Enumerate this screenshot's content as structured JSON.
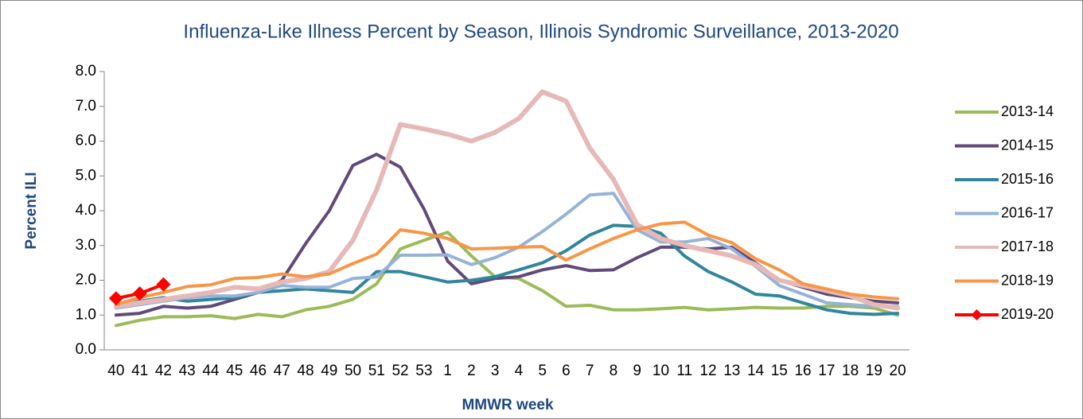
{
  "chart_data": {
    "type": "line",
    "title": "Influenza-Like Illness Percent by Season, Illinois Syndromic Surveillance, 2013-2020",
    "x_label": "MMWR week",
    "y_label": "Percent ILI",
    "categories": [
      "40",
      "41",
      "42",
      "43",
      "44",
      "45",
      "46",
      "47",
      "48",
      "49",
      "50",
      "51",
      "52",
      "53",
      "1",
      "2",
      "3",
      "4",
      "5",
      "6",
      "7",
      "8",
      "9",
      "10",
      "11",
      "12",
      "13",
      "14",
      "15",
      "16",
      "17",
      "18",
      "19",
      "20"
    ],
    "ylim": [
      0,
      8
    ],
    "yticks": [
      {
        "value": 0,
        "label": "0.0"
      },
      {
        "value": 1,
        "label": "1.0"
      },
      {
        "value": 2,
        "label": "2.0"
      },
      {
        "value": 3,
        "label": "3.0"
      },
      {
        "value": 4,
        "label": "4.0"
      },
      {
        "value": 5,
        "label": "5.0"
      },
      {
        "value": 6,
        "label": "6.0"
      },
      {
        "value": 7,
        "label": "7.0"
      },
      {
        "value": 8,
        "label": "8.0"
      }
    ],
    "grid": false,
    "legend": "right",
    "series": [
      {
        "name": "2013-14",
        "color": "#9bbb59",
        "values": [
          0.7,
          0.85,
          0.95,
          0.95,
          0.98,
          0.9,
          1.02,
          0.95,
          1.15,
          1.25,
          1.45,
          1.9,
          2.9,
          3.15,
          3.38,
          2.7,
          2.1,
          2.05,
          1.7,
          1.25,
          1.28,
          1.15,
          1.15,
          1.18,
          1.22,
          1.15,
          1.18,
          1.22,
          1.2,
          1.2,
          1.25,
          1.25,
          1.2,
          1.0
        ]
      },
      {
        "name": "2014-15",
        "color": "#604a7b",
        "values": [
          1.0,
          1.05,
          1.25,
          1.2,
          1.25,
          1.45,
          1.65,
          2.0,
          3.05,
          4.0,
          5.3,
          5.62,
          5.25,
          4.05,
          2.55,
          1.9,
          2.05,
          2.1,
          2.3,
          2.42,
          2.28,
          2.3,
          2.65,
          2.95,
          2.95,
          2.9,
          2.95,
          2.5,
          2.0,
          1.8,
          1.6,
          1.5,
          1.4,
          1.35
        ]
      },
      {
        "name": "2015-16",
        "color": "#31859c",
        "values": [
          1.3,
          1.4,
          1.5,
          1.4,
          1.45,
          1.5,
          1.65,
          1.7,
          1.75,
          1.7,
          1.65,
          2.25,
          2.25,
          2.1,
          1.95,
          2.0,
          2.1,
          2.3,
          2.5,
          2.85,
          3.3,
          3.58,
          3.55,
          3.35,
          2.7,
          2.25,
          1.95,
          1.6,
          1.55,
          1.35,
          1.15,
          1.05,
          1.02,
          1.05
        ]
      },
      {
        "name": "2016-17",
        "color": "#95b3d7",
        "values": [
          1.2,
          1.3,
          1.4,
          1.5,
          1.55,
          1.55,
          1.65,
          1.85,
          1.8,
          1.8,
          2.05,
          2.1,
          2.72,
          2.72,
          2.73,
          2.45,
          2.65,
          2.95,
          3.4,
          3.9,
          4.45,
          4.5,
          3.45,
          3.1,
          3.1,
          3.2,
          2.9,
          2.4,
          1.85,
          1.6,
          1.35,
          1.3,
          1.25,
          1.25
        ]
      },
      {
        "name": "2017-18",
        "color": "#e6b9b8",
        "values": [
          1.25,
          1.35,
          1.45,
          1.55,
          1.65,
          1.8,
          1.75,
          1.95,
          2.05,
          2.25,
          3.15,
          4.6,
          6.48,
          6.35,
          6.2,
          6.0,
          6.25,
          6.65,
          7.42,
          7.15,
          5.8,
          4.9,
          3.6,
          3.2,
          3.0,
          2.85,
          2.7,
          2.45,
          2.0,
          1.85,
          1.7,
          1.55,
          1.3,
          1.2
        ]
      },
      {
        "name": "2018-19",
        "color": "#f79646",
        "values": [
          1.3,
          1.5,
          1.65,
          1.82,
          1.87,
          2.05,
          2.08,
          2.18,
          2.1,
          2.18,
          2.48,
          2.75,
          3.45,
          3.35,
          3.2,
          2.9,
          2.92,
          2.95,
          2.97,
          2.58,
          2.9,
          3.2,
          3.45,
          3.62,
          3.67,
          3.3,
          3.08,
          2.62,
          2.3,
          1.9,
          1.75,
          1.6,
          1.52,
          1.47
        ]
      },
      {
        "name": "2019-20",
        "color": "#ff0000",
        "marker": "diamond",
        "values": [
          1.48,
          1.62,
          1.88,
          null,
          null,
          null,
          null,
          null,
          null,
          null,
          null,
          null,
          null,
          null,
          null,
          null,
          null,
          null,
          null,
          null,
          null,
          null,
          null,
          null,
          null,
          null,
          null,
          null,
          null,
          null,
          null,
          null,
          null,
          null
        ]
      }
    ]
  }
}
